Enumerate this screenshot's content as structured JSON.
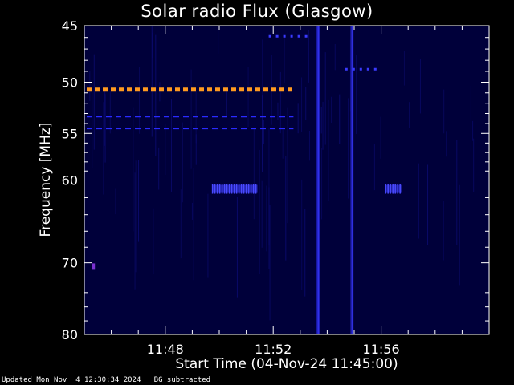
{
  "chart_data": {
    "type": "heatmap",
    "title": "Solar radio Flux (Glasgow)",
    "xlabel": "Start Time (04-Nov-24 11:45:00)",
    "ylabel": "Frequency [MHz]",
    "xlim": [
      "11:45:00",
      "12:00:00"
    ],
    "ylim": [
      80,
      45
    ],
    "y_scale": "log",
    "x_ticks": [
      "11:48",
      "11:52",
      "11:56"
    ],
    "y_ticks": [
      45,
      50,
      55,
      60,
      70,
      80
    ],
    "background_color": "#00003a",
    "features": [
      {
        "kind": "dashed-line",
        "freq_mhz": 50.7,
        "t_start": "11:45:00",
        "t_end": "11:52:45",
        "color": "#ff9a1f"
      },
      {
        "kind": "dashed-line",
        "freq_mhz": 53.3,
        "t_start": "11:45:00",
        "t_end": "11:52:45",
        "color": "#2a2aff"
      },
      {
        "kind": "dashed-line",
        "freq_mhz": 54.5,
        "t_start": "11:45:00",
        "t_end": "11:52:45",
        "color": "#2a2aff"
      },
      {
        "kind": "burst",
        "freq_mhz": 61.0,
        "t_start": "11:49:45",
        "t_end": "11:51:25",
        "color": "#3a3aff"
      },
      {
        "kind": "burst",
        "freq_mhz": 61.0,
        "t_start": "11:56:10",
        "t_end": "11:56:45",
        "color": "#3a3aff"
      },
      {
        "kind": "vertical-band",
        "time": "11:53:40",
        "freq_range": [
          45,
          80
        ],
        "color": "#2222cc"
      },
      {
        "kind": "vertical-band",
        "time": "11:54:55",
        "freq_range": [
          45,
          80
        ],
        "color": "#1a1aa0"
      },
      {
        "kind": "dashes",
        "freq_mhz": 45.9,
        "t_start": "11:51:50",
        "t_end": "11:53:20",
        "color": "#3a3aff"
      },
      {
        "kind": "dashes",
        "freq_mhz": 48.8,
        "t_start": "11:54:40",
        "t_end": "11:55:50",
        "color": "#3a3aff"
      },
      {
        "kind": "spot",
        "freq_mhz": 70.5,
        "time": "11:45:20",
        "color": "#7a30d0"
      }
    ]
  },
  "footer": {
    "updated": "Updated Mon Nov  4 12:30:34 2024",
    "note": "BG subtracted"
  }
}
